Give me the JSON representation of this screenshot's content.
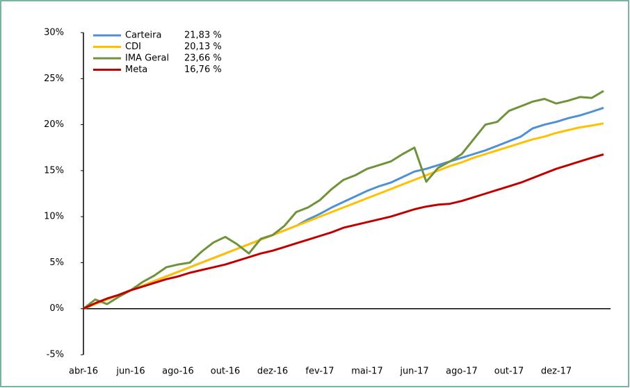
{
  "chart_data": {
    "type": "line",
    "x": [
      "abr-16",
      null,
      null,
      null,
      "jun-16",
      null,
      null,
      null,
      "ago-16",
      null,
      null,
      null,
      "out-16",
      null,
      null,
      null,
      "dez-16",
      null,
      null,
      null,
      "fev-17",
      null,
      null,
      null,
      "mai-17",
      null,
      null,
      null,
      "jun-17",
      null,
      null,
      null,
      "ago-17",
      null,
      null,
      null,
      "out-17",
      null,
      null,
      null,
      "dez-17",
      null,
      null,
      null,
      null
    ],
    "series": [
      {
        "name": "Carteira",
        "final_label": "21,83 %",
        "color": "#4f8fd6",
        "values": [
          0,
          0.5,
          1.0,
          1.5,
          2.0,
          2.5,
          3.0,
          3.5,
          4.0,
          4.5,
          5.0,
          5.5,
          6.0,
          6.5,
          7.0,
          7.5,
          8.0,
          8.5,
          9.0,
          9.7,
          10.3,
          11.0,
          11.6,
          12.2,
          12.8,
          13.3,
          13.7,
          14.3,
          14.9,
          15.2,
          15.6,
          16.0,
          16.4,
          16.8,
          17.2,
          17.7,
          18.2,
          18.7,
          19.6,
          20.0,
          20.3,
          20.7,
          21.0,
          21.4,
          21.83
        ]
      },
      {
        "name": "CDI",
        "final_label": "20,13 %",
        "color": "#ffc000",
        "values": [
          0,
          0.5,
          1.0,
          1.5,
          2.0,
          2.5,
          3.0,
          3.5,
          4.0,
          4.5,
          5.0,
          5.5,
          6.0,
          6.5,
          7.0,
          7.5,
          8.0,
          8.5,
          9.0,
          9.5,
          10.0,
          10.5,
          11.0,
          11.5,
          12.0,
          12.5,
          13.0,
          13.5,
          14.0,
          14.5,
          15.0,
          15.5,
          15.9,
          16.4,
          16.8,
          17.2,
          17.6,
          18.0,
          18.4,
          18.7,
          19.1,
          19.4,
          19.7,
          19.9,
          20.13
        ]
      },
      {
        "name": "IMA Geral",
        "final_label": "23,66 %",
        "color": "#70923a",
        "values": [
          0,
          1.0,
          0.5,
          1.3,
          2.0,
          2.9,
          3.6,
          4.5,
          4.8,
          5.0,
          6.2,
          7.2,
          7.8,
          7.0,
          6.0,
          7.6,
          8.0,
          9.0,
          10.5,
          11.0,
          11.8,
          13.0,
          14.0,
          14.5,
          15.2,
          15.6,
          16.0,
          16.8,
          17.5,
          13.8,
          15.3,
          16.0,
          16.8,
          18.4,
          20.0,
          20.3,
          21.5,
          22.0,
          22.5,
          22.8,
          22.3,
          22.6,
          23.0,
          22.9,
          23.66
        ]
      },
      {
        "name": "Meta",
        "final_label": "16,76 %",
        "color": "#c00000",
        "values": [
          0,
          0.6,
          1.1,
          1.5,
          2.0,
          2.4,
          2.8,
          3.2,
          3.5,
          3.9,
          4.2,
          4.5,
          4.8,
          5.2,
          5.6,
          6.0,
          6.3,
          6.7,
          7.1,
          7.5,
          7.9,
          8.3,
          8.8,
          9.1,
          9.4,
          9.7,
          10.0,
          10.4,
          10.8,
          11.1,
          11.3,
          11.4,
          11.7,
          12.1,
          12.5,
          12.9,
          13.3,
          13.7,
          14.2,
          14.7,
          15.2,
          15.6,
          16.0,
          16.4,
          16.76
        ]
      }
    ],
    "ylim": [
      -5,
      30
    ],
    "yticks": [
      {
        "value": -5,
        "label": "-5%"
      },
      {
        "value": 0,
        "label": "0%"
      },
      {
        "value": 5,
        "label": "5%"
      },
      {
        "value": 10,
        "label": "10%"
      },
      {
        "value": 15,
        "label": "15%"
      },
      {
        "value": 20,
        "label": "20%"
      },
      {
        "value": 25,
        "label": "25%"
      },
      {
        "value": 30,
        "label": "30%"
      }
    ],
    "legend": "top-left"
  }
}
